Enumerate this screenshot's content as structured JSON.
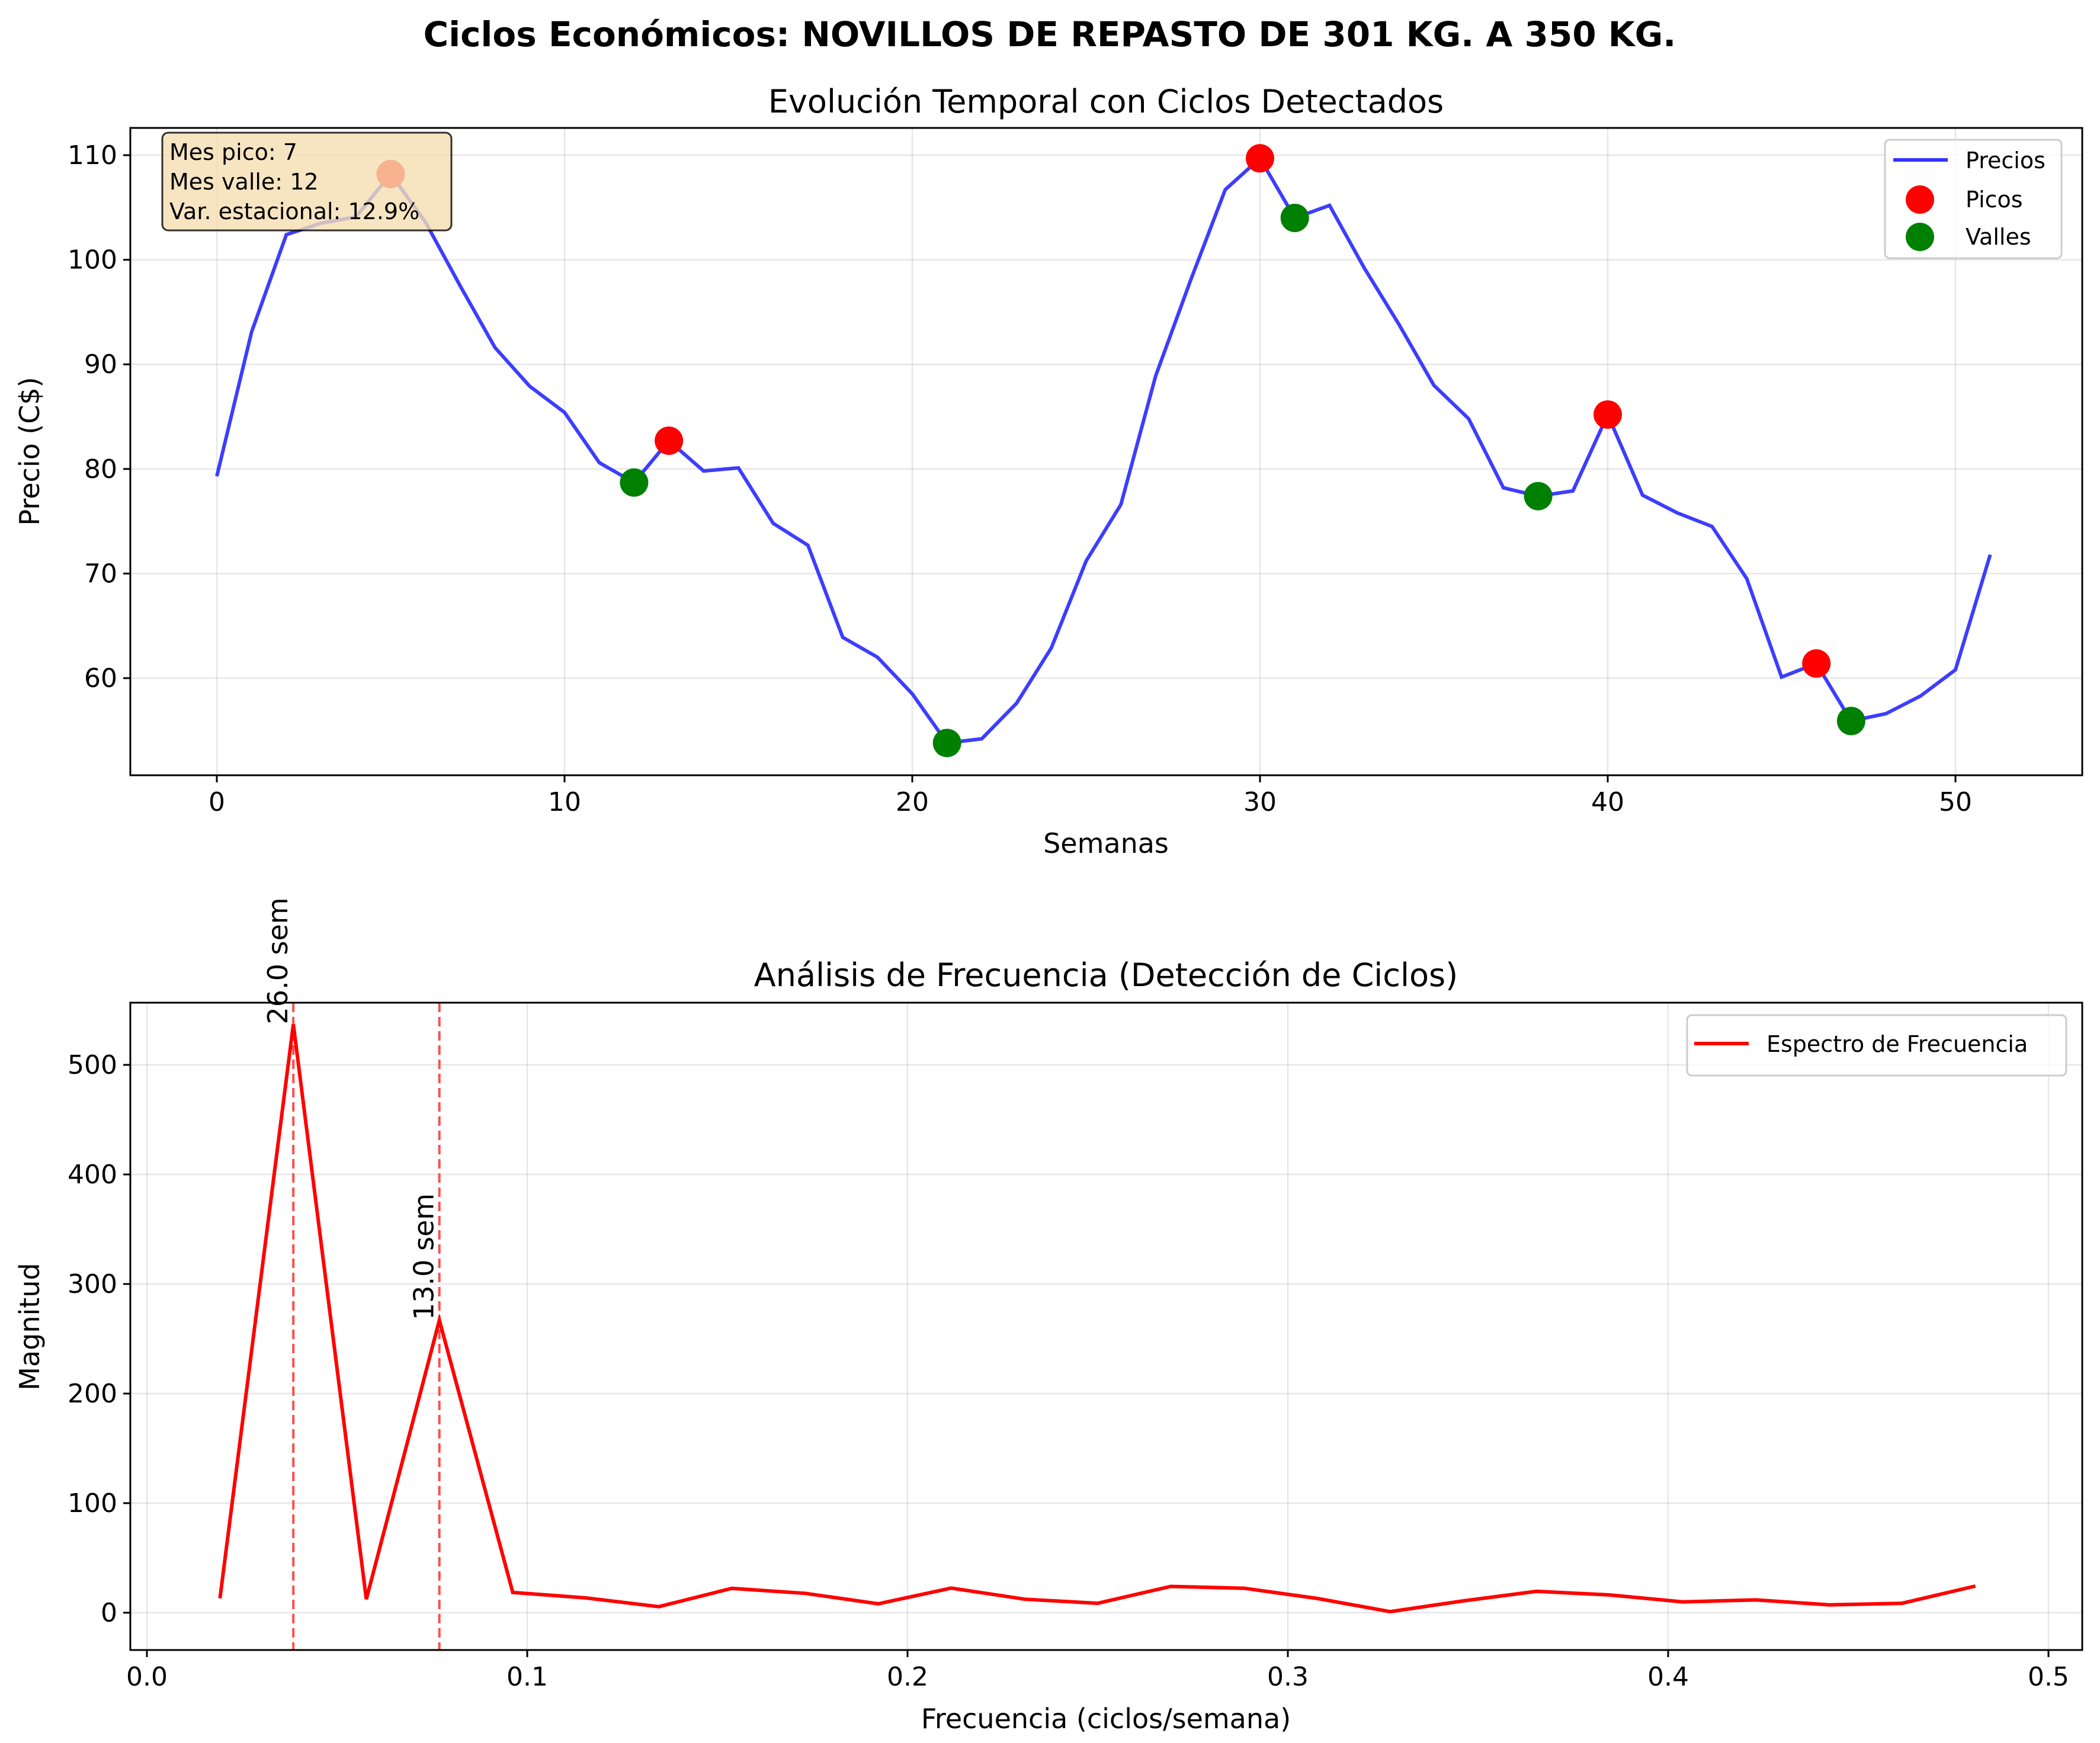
{
  "figure": {
    "suptitle": "Ciclos Económicos: NOVILLOS DE REPASTO DE 301 KG. A 350 KG."
  },
  "colors": {
    "price_line": "#3333ff",
    "peaks": "#ff0000",
    "valleys": "#008000",
    "spectrum": "#ff0000",
    "cycle_marker": "#ff4444",
    "info_box_bg": "#f5deb3",
    "grid": "#b0b0b0"
  },
  "chart_data": [
    {
      "type": "line",
      "title": "Evolución Temporal con Ciclos Detectados",
      "xlabel": "Semanas",
      "ylabel": "Precio (C$)",
      "xlim": [
        -2.55,
        53.55
      ],
      "ylim": [
        50.8,
        112.7
      ],
      "xticks": [
        0,
        10,
        20,
        30,
        40,
        50
      ],
      "yticks": [
        60,
        70,
        80,
        90,
        100,
        110
      ],
      "grid": true,
      "legend_position": "upper right",
      "x": [
        0,
        1,
        2,
        3,
        4,
        5,
        6,
        7,
        8,
        9,
        10,
        11,
        12,
        13,
        14,
        15,
        16,
        17,
        18,
        19,
        20,
        21,
        22,
        23,
        24,
        25,
        26,
        27,
        28,
        29,
        30,
        31,
        32,
        33,
        34,
        35,
        36,
        37,
        38,
        39,
        40,
        41,
        42,
        43,
        44,
        45,
        46,
        47,
        48,
        49,
        50,
        51
      ],
      "series": [
        {
          "name": "Precios",
          "kind": "line",
          "values": [
            79.3,
            93.1,
            102.4,
            103.5,
            104.1,
            108.2,
            103.6,
            97.5,
            91.6,
            87.9,
            85.4,
            80.6,
            78.7,
            82.7,
            79.8,
            80.1,
            74.8,
            72.7,
            63.9,
            62.0,
            58.5,
            53.8,
            54.2,
            57.6,
            62.9,
            71.2,
            76.6,
            88.9,
            98.0,
            106.7,
            109.7,
            104.0,
            105.2,
            99.2,
            93.8,
            88.0,
            84.8,
            78.2,
            77.4,
            77.9,
            85.2,
            77.5,
            75.8,
            74.5,
            69.5,
            60.1,
            61.4,
            55.9,
            56.6,
            58.3,
            60.8,
            71.8
          ]
        },
        {
          "name": "Picos",
          "kind": "scatter",
          "points": [
            [
              5,
              108.2
            ],
            [
              13,
              82.7
            ],
            [
              30,
              109.7
            ],
            [
              40,
              85.2
            ],
            [
              46,
              61.4
            ]
          ]
        },
        {
          "name": "Valles",
          "kind": "scatter",
          "points": [
            [
              12,
              78.7
            ],
            [
              21,
              53.8
            ],
            [
              31,
              104.0
            ],
            [
              38,
              77.4
            ],
            [
              47,
              55.9
            ]
          ]
        }
      ],
      "annotations": [
        "Mes pico: 7",
        "Mes valle: 12",
        "Var. estacional: 12.9%"
      ]
    },
    {
      "type": "line",
      "title": "Análisis de Frecuencia (Detección de Ciclos)",
      "xlabel": "Frecuencia (ciclos/semana)",
      "ylabel": "Magnitud",
      "xlim": [
        -0.004,
        0.504
      ],
      "ylim": [
        -26.8,
        563
      ],
      "xticks": [
        0.0,
        0.1,
        0.2,
        0.3,
        0.4,
        0.5
      ],
      "yticks": [
        0,
        100,
        200,
        300,
        400,
        500
      ],
      "grid": true,
      "legend_position": "upper right",
      "x": [
        0.0192,
        0.0385,
        0.0577,
        0.0769,
        0.0962,
        0.1154,
        0.1346,
        0.1538,
        0.1731,
        0.1923,
        0.2115,
        0.2308,
        0.25,
        0.2692,
        0.2885,
        0.3077,
        0.3269,
        0.3462,
        0.3654,
        0.3846,
        0.4038,
        0.4231,
        0.4423,
        0.4615,
        0.4808
      ],
      "series": [
        {
          "name": "Espectro de Frecuencia",
          "kind": "line",
          "values": [
            13.1,
            537,
            12.3,
            267,
            18.5,
            13.5,
            5.5,
            22.2,
            17.7,
            8.1,
            22.5,
            12.3,
            8.6,
            24.0,
            22.3,
            13.0,
            1.0,
            10.8,
            19.5,
            16.2,
            9.9,
            11.7,
            7.2,
            8.6,
            24.3
          ]
        }
      ],
      "cycle_markers": [
        {
          "frequency": 0.0385,
          "label": "26.0 sem"
        },
        {
          "frequency": 0.0769,
          "label": "13.0 sem"
        }
      ]
    }
  ],
  "info_box": {
    "line1": "Mes pico: 7",
    "line2": "Mes valle: 12",
    "line3": "Var. estacional: 12.9%"
  },
  "top_chart": {
    "title": "Evolución Temporal con Ciclos Detectados",
    "xlabel": "Semanas",
    "ylabel": "Precio (C$)",
    "legend": {
      "precios": "Precios",
      "picos": "Picos",
      "valles": "Valles"
    }
  },
  "bottom_chart": {
    "title": "Análisis de Frecuencia (Detección de Ciclos)",
    "xlabel": "Frecuencia (ciclos/semana)",
    "ylabel": "Magnitud",
    "legend": {
      "espectro": "Espectro de Frecuencia"
    }
  }
}
